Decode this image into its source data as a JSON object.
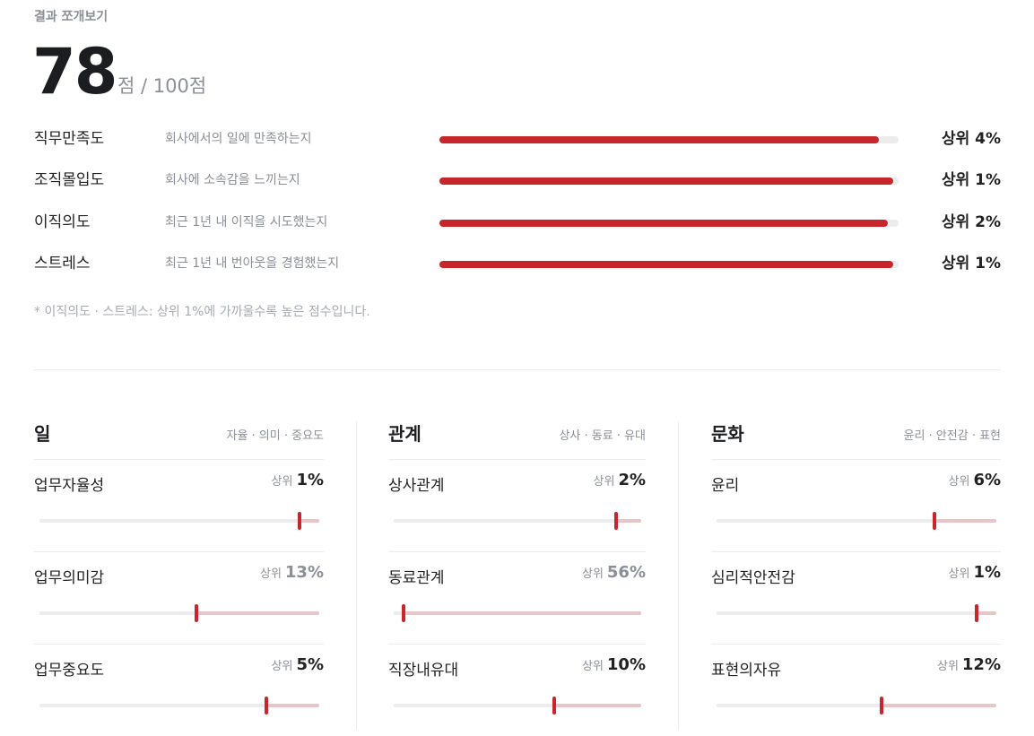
{
  "header": {
    "label": "결과 쪼개보기"
  },
  "score": {
    "value": "78",
    "suffix": "점 / 100점"
  },
  "metrics": [
    {
      "name": "직무만족도",
      "desc": "회사에서의 일에 만족하는지",
      "rank": "상위 4%",
      "fill": 0.957
    },
    {
      "name": "조직몰입도",
      "desc": "회사에 소속감을 느끼는지",
      "rank": "상위 1%",
      "fill": 0.988
    },
    {
      "name": "이직의도",
      "desc": "최근 1년 내 이직을 시도했는지",
      "rank": "상위 2%",
      "fill": 0.977
    },
    {
      "name": "스트레스",
      "desc": "최근 1년 내 번아웃을 경험했는지",
      "rank": "상위 1%",
      "fill": 0.988
    }
  ],
  "footnote": "* 이직의도 · 스트레스: 상위 1%에 가까울수록 높은 점수입니다.",
  "categories": [
    {
      "title": "일",
      "sub": "자율 · 의미 · 중요도",
      "items": [
        {
          "name": "업무자율성",
          "rank_label": "상위",
          "rank_value": "1%",
          "muted": false,
          "level": 0.93
        },
        {
          "name": "업무의미감",
          "rank_label": "상위",
          "rank_value": "13%",
          "muted": true,
          "level": 0.56
        },
        {
          "name": "업무중요도",
          "rank_label": "상위",
          "rank_value": "5%",
          "muted": false,
          "level": 0.81
        }
      ]
    },
    {
      "title": "관계",
      "sub": "상사 · 동료 · 유대",
      "items": [
        {
          "name": "상사관계",
          "rank_label": "상위",
          "rank_value": "2%",
          "muted": false,
          "level": 0.9
        },
        {
          "name": "동료관계",
          "rank_label": "상위",
          "rank_value": "56%",
          "muted": true,
          "level": 0.04
        },
        {
          "name": "직장내유대",
          "rank_label": "상위",
          "rank_value": "10%",
          "muted": false,
          "level": 0.65
        }
      ]
    },
    {
      "title": "문화",
      "sub": "윤리 · 안전감 · 표현",
      "items": [
        {
          "name": "윤리",
          "rank_label": "상위",
          "rank_value": "6%",
          "muted": false,
          "level": 0.78
        },
        {
          "name": "심리적안전감",
          "rank_label": "상위",
          "rank_value": "1%",
          "muted": false,
          "level": 0.93
        },
        {
          "name": "표현의자유",
          "rank_label": "상위",
          "rank_value": "12%",
          "muted": false,
          "level": 0.59
        }
      ]
    }
  ]
}
